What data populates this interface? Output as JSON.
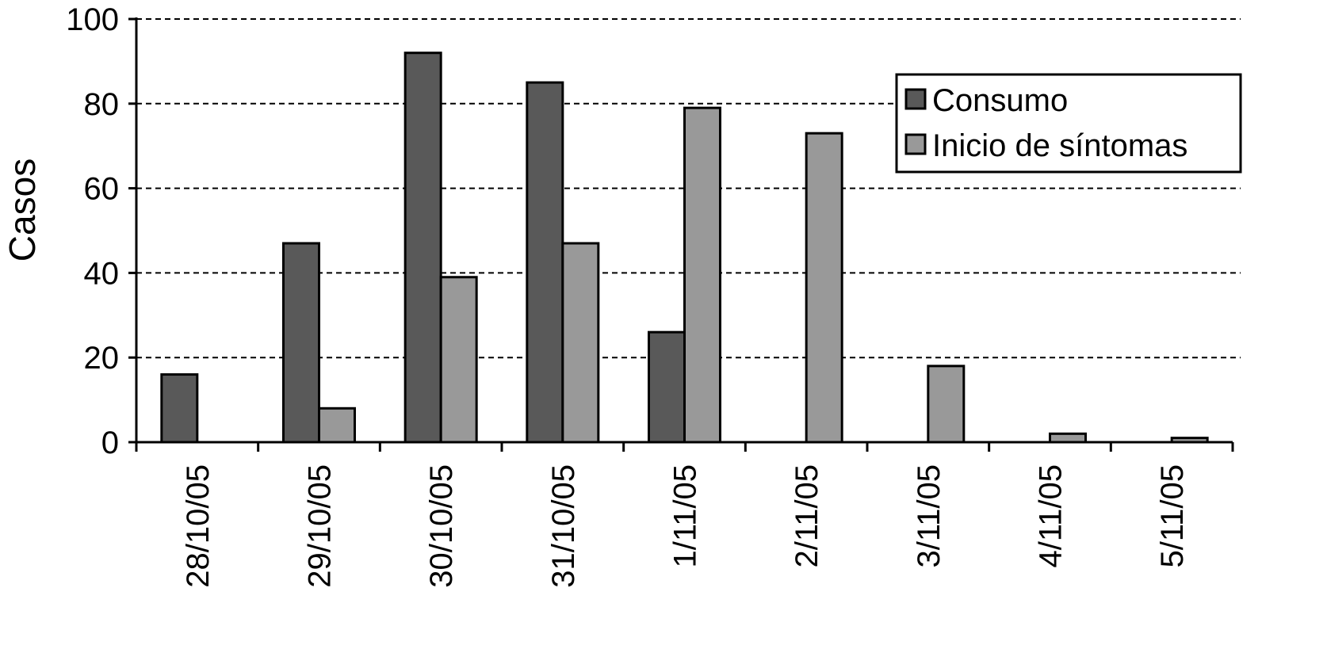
{
  "chart_data": {
    "type": "bar",
    "title": "",
    "xlabel": "",
    "ylabel": "Casos",
    "ylim": [
      0,
      100
    ],
    "yticks": [
      0,
      20,
      40,
      60,
      80,
      100
    ],
    "grid": "horizontal-dashed",
    "legend_position": "top-right",
    "categories": [
      "28/10/05",
      "29/10/05",
      "30/10/05",
      "31/10/05",
      "1/11/05",
      "2/11/05",
      "3/11/05",
      "4/11/05",
      "5/11/05"
    ],
    "series": [
      {
        "name": "Consumo",
        "color": "#595959",
        "values": [
          16,
          47,
          92,
          85,
          26,
          0,
          0,
          0,
          0
        ]
      },
      {
        "name": "Inicio de síntomas",
        "color": "#999999",
        "values": [
          0,
          8,
          39,
          47,
          79,
          73,
          18,
          2,
          1
        ]
      }
    ]
  }
}
